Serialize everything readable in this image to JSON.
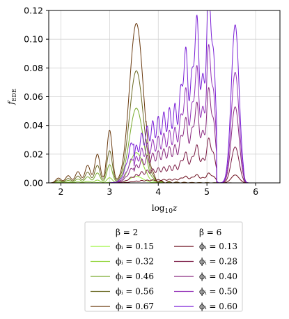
{
  "chart_data": {
    "type": "line",
    "xlabel": "log₁₀z",
    "ylabel": "f_EDE",
    "xlim": [
      1.75,
      6.5
    ],
    "ylim": [
      0,
      0.12
    ],
    "x_ticks": [
      "2",
      "3",
      "4",
      "5",
      "6"
    ],
    "y_ticks": [
      "0.00",
      "0.02",
      "0.04",
      "0.06",
      "0.08",
      "0.10",
      "0.12"
    ],
    "grid": true,
    "legend_placement": "below",
    "legend_groups": [
      {
        "title": "β = 2",
        "entries": [
          0,
          1,
          2,
          3,
          4
        ]
      },
      {
        "title": "β = 6",
        "entries": [
          5,
          6,
          7,
          8,
          9
        ]
      }
    ],
    "series": [
      {
        "name": "ϕᵢ = 0.15",
        "color": "#9ef542",
        "family": "beta2",
        "peak_x": 2.92,
        "peak_y": 0.0045
      },
      {
        "name": "ϕᵢ = 0.32",
        "color": "#8fd334",
        "family": "beta2",
        "peak_x": 3.52,
        "peak_y": 0.021
      },
      {
        "name": "ϕᵢ = 0.46",
        "color": "#79ab2e",
        "family": "beta2",
        "peak_x": 3.52,
        "peak_y": 0.052
      },
      {
        "name": "ϕᵢ = 0.56",
        "color": "#6b6a23",
        "family": "beta2",
        "peak_x": 3.52,
        "peak_y": 0.078
      },
      {
        "name": "ϕᵢ = 0.67",
        "color": "#6a3a0f",
        "family": "beta2",
        "peak_x": 3.55,
        "peak_y": 0.111
      },
      {
        "name": "ϕᵢ = 0.13",
        "color": "#6b0c1c",
        "family": "beta6",
        "peak_x": 5.3,
        "peak_y": 0.0055
      },
      {
        "name": "ϕᵢ = 0.28",
        "color": "#7a1a44",
        "family": "beta6",
        "peak_x": 5.45,
        "peak_y": 0.025
      },
      {
        "name": "ϕᵢ = 0.40",
        "color": "#8a2a80",
        "family": "beta6",
        "peak_x": 5.5,
        "peak_y": 0.053
      },
      {
        "name": "ϕᵢ = 0.50",
        "color": "#9433b8",
        "family": "beta6",
        "peak_x": 5.55,
        "peak_y": 0.077
      },
      {
        "name": "ϕᵢ = 0.60",
        "color": "#7a1fd6",
        "family": "beta6",
        "peak_x": 5.58,
        "peak_y": 0.11
      }
    ]
  }
}
